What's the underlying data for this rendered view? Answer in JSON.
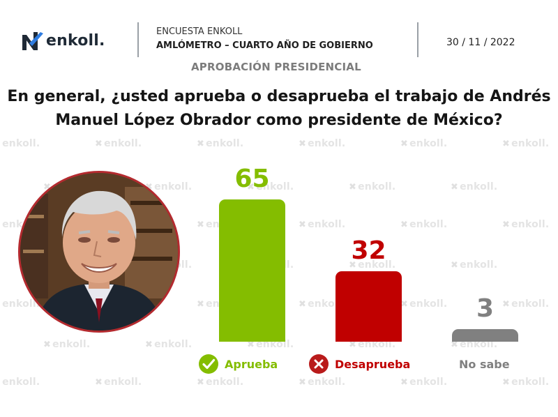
{
  "header": {
    "brand": "enkoll.",
    "survey_name": "ENCUESTA ENKOLL",
    "survey_subtitle": "AMLÓMETRO – CUARTO AÑO DE GOBIERNO",
    "date": "30 / 11 / 2022",
    "topic": "APROBACIÓN PRESIDENCIAL"
  },
  "question": {
    "line1": "En general, ¿usted aprueba o desaprueba el trabajo de Andrés",
    "line2": "Manuel López Obrador como presidente de México?"
  },
  "watermark_text": "enkoll.",
  "colors": {
    "approve": "#84bd00",
    "disapprove": "#c00000",
    "unsure": "#808080",
    "portrait_border": "#b42a2f"
  },
  "chart_data": {
    "type": "bar",
    "title": "¿Aprueba o desaprueba el trabajo de Andrés Manuel López Obrador?",
    "categories": [
      "Aprueba",
      "Desaprueba",
      "No sabe"
    ],
    "values": [
      65,
      32,
      3
    ],
    "ylim": [
      0,
      70
    ],
    "xlabel": "",
    "ylabel": "",
    "grid": false
  }
}
